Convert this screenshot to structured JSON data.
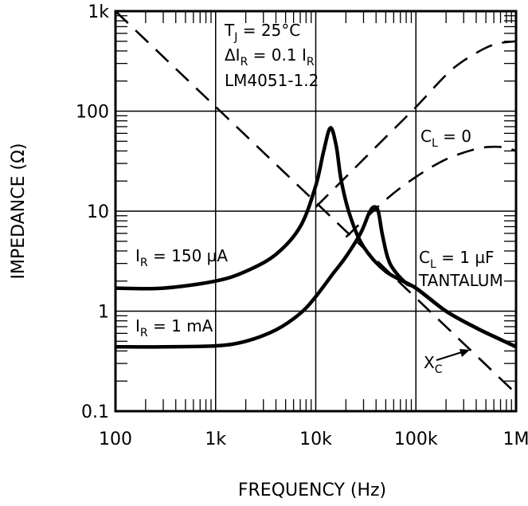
{
  "chart_data": {
    "type": "line",
    "title": "",
    "xlabel": "FREQUENCY (Hz)",
    "ylabel": "IMPEDANCE (Ω)",
    "xscale": "log",
    "yscale": "log",
    "xlim": [
      100,
      1000000
    ],
    "ylim": [
      0.1,
      1000
    ],
    "grid": true,
    "x_ticks": [
      {
        "value": 100,
        "label": "100"
      },
      {
        "value": 1000,
        "label": "1k"
      },
      {
        "value": 10000,
        "label": "10k"
      },
      {
        "value": 100000,
        "label": "100k"
      },
      {
        "value": 1000000,
        "label": "1M"
      }
    ],
    "y_ticks": [
      {
        "value": 0.1,
        "label": "0.1"
      },
      {
        "value": 1,
        "label": "1"
      },
      {
        "value": 10,
        "label": "10"
      },
      {
        "value": 100,
        "label": "100"
      },
      {
        "value": 1000,
        "label": "1k"
      }
    ],
    "series": [
      {
        "name": "IR = 150 µA, CL = 1 µF tantalum",
        "style": "solid",
        "x": [
          100,
          300,
          1000,
          2000,
          4000,
          7000,
          10000,
          12000,
          14000,
          16000,
          18000,
          22000,
          30000,
          50000,
          100000,
          200000,
          400000,
          700000,
          1000000
        ],
        "y": [
          1.7,
          1.7,
          2.0,
          2.5,
          3.7,
          7.0,
          18,
          40,
          68,
          45,
          20,
          9,
          4.4,
          2.5,
          1.7,
          1.0,
          0.68,
          0.52,
          0.44
        ]
      },
      {
        "name": "IR = 1 mA, CL = 1 µF tantalum",
        "style": "solid",
        "x": [
          100,
          300,
          1000,
          2000,
          4000,
          7000,
          10000,
          15000,
          20000,
          28000,
          34000,
          38000,
          42000,
          46000,
          52000,
          60000,
          80000,
          100000,
          200000,
          400000,
          700000,
          1000000
        ],
        "y": [
          0.44,
          0.44,
          0.45,
          0.5,
          0.65,
          0.95,
          1.4,
          2.4,
          3.5,
          6.0,
          9.5,
          11,
          10,
          6.0,
          3.5,
          2.6,
          1.9,
          1.7,
          1.0,
          0.68,
          0.52,
          0.44
        ]
      },
      {
        "name": "CL = 0",
        "style": "dashed",
        "x": [
          10000,
          20000,
          50000,
          100000,
          200000,
          300000,
          500000,
          700000,
          1000000
        ],
        "y": [
          11,
          22,
          55,
          110,
          230,
          320,
          430,
          480,
          500
        ]
      },
      {
        "name": "CL = 1 µF (dashed)",
        "style": "dashed",
        "x": [
          20000,
          50000,
          100000,
          200000,
          400000,
          600000,
          800000,
          1000000
        ],
        "y": [
          5.5,
          13,
          22,
          33,
          42,
          44,
          43,
          40
        ]
      },
      {
        "name": "XC",
        "style": "dashed",
        "x": [
          100,
          1000000
        ],
        "y": [
          1000,
          0.15
        ]
      }
    ],
    "annotations": {
      "conditions": {
        "tj": "T",
        "tj_sub": "J",
        "tj_rest": " = 25°C",
        "delta": "ΔI",
        "delta_sub": "R",
        "delta_mid": " = 0.1 I",
        "delta_sub2": "R",
        "part": "LM4051-1.2"
      },
      "cl0": {
        "main": "C",
        "sub": "L",
        "rest": " = 0"
      },
      "cl1": {
        "main": "C",
        "sub": "L",
        "rest": " = 1 µF",
        "line2": "TANTALUM"
      },
      "ir150": {
        "main": "I",
        "sub": "R",
        "rest": " = 150 µA"
      },
      "ir1": {
        "main": "I",
        "sub": "R",
        "rest": " = 1 mA"
      },
      "xc": {
        "main": "X",
        "sub": "C"
      }
    }
  }
}
